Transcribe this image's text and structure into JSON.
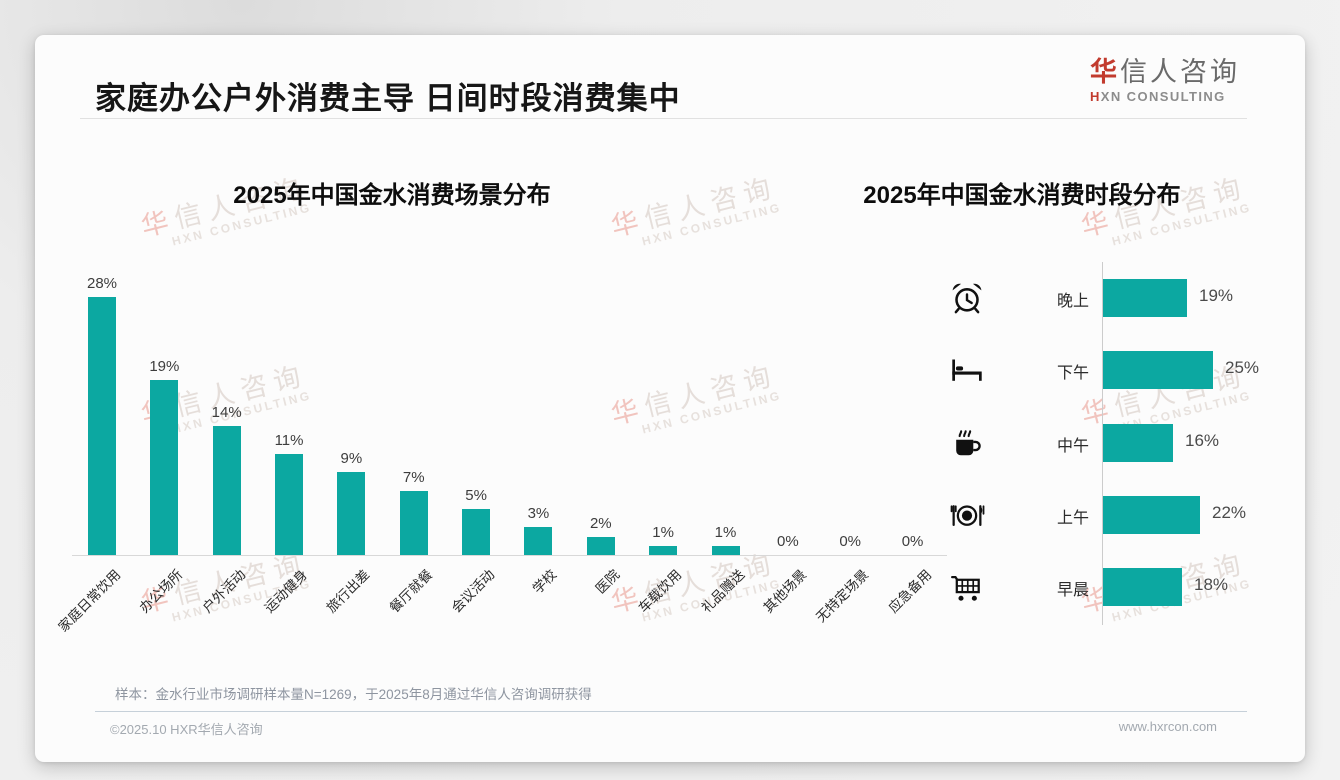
{
  "header": {
    "title": "家庭办公户外消费主导 日间时段消费集中"
  },
  "logo": {
    "cn_first": "华",
    "cn_rest": "信人咨询",
    "en_first": "H",
    "en_rest": "XN CONSULTING"
  },
  "watermark": {
    "line1_first": "华",
    "line1_rest": "信人咨询",
    "line2": "HXN CONSULTING"
  },
  "colors": {
    "accent_teal": "#0ca8a1",
    "brand_red": "#c23b2e"
  },
  "chart_data": [
    {
      "type": "bar",
      "orientation": "vertical",
      "title": "2025年中国金水消费场景分布",
      "categories": [
        "家庭日常饮用",
        "办公场所",
        "户外活动",
        "运动健身",
        "旅行出差",
        "餐厅就餐",
        "会议活动",
        "学校",
        "医院",
        "车载饮用",
        "礼品赠送",
        "其他场景",
        "无特定场景",
        "应急备用"
      ],
      "values": [
        28,
        19,
        14,
        11,
        9,
        7,
        5,
        3,
        2,
        1,
        1,
        0,
        0,
        0
      ],
      "value_labels": [
        "28%",
        "19%",
        "14%",
        "11%",
        "9%",
        "7%",
        "5%",
        "3%",
        "2%",
        "1%",
        "1%",
        "0%",
        "0%",
        "0%"
      ],
      "unit": "%",
      "bar_color": "#0ca8a1",
      "grid": false,
      "ylim": [
        0,
        30
      ]
    },
    {
      "type": "bar",
      "orientation": "horizontal",
      "title": "2025年中国金水消费时段分布",
      "categories": [
        "晚上",
        "下午",
        "中午",
        "上午",
        "早晨"
      ],
      "values": [
        19,
        25,
        16,
        22,
        18
      ],
      "value_labels": [
        "19%",
        "25%",
        "16%",
        "22%",
        "18%"
      ],
      "icons": [
        "alarm-clock-icon",
        "bed-icon",
        "coffee-icon",
        "dining-icon",
        "cart-icon"
      ],
      "unit": "%",
      "bar_color": "#0ca8a1",
      "grid": false,
      "xlim": [
        0,
        28
      ]
    }
  ],
  "footer": {
    "note": "样本：金水行业市场调研样本量N=1269，于2025年8月通过华信人咨询调研获得",
    "copyright": "©2025.10 HXR华信人咨询",
    "website": "www.hxrcon.com"
  }
}
